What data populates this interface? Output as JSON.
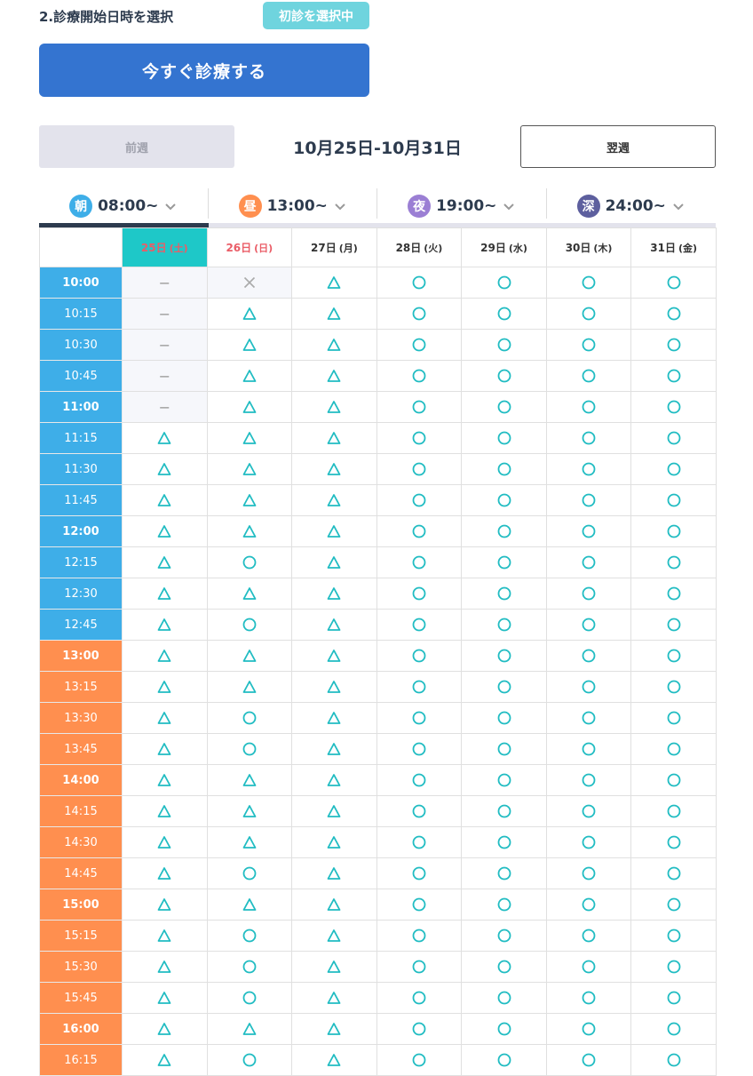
{
  "header": {
    "step_title": "2.診療開始日時を選択",
    "first_visit_badge": "初診を選択中",
    "now_button": "今すぐ診療する"
  },
  "week_nav": {
    "prev_label": "前週",
    "range": "10月25日-10月31日",
    "next_label": "翌週"
  },
  "period_tabs": [
    {
      "icon": "朝",
      "time": "08:00~",
      "color": "#3eaee8",
      "active": true
    },
    {
      "icon": "昼",
      "time": "13:00~",
      "color": "#ff8f4f",
      "active": false
    },
    {
      "icon": "夜",
      "time": "19:00~",
      "color": "#9b7fd4",
      "active": false
    },
    {
      "icon": "深",
      "time": "24:00~",
      "color": "#5d5f9e",
      "active": false
    }
  ],
  "colors": {
    "available": "#20bcc2",
    "full": "#aaaaaa",
    "morning": "#3eaee8",
    "afternoon": "#ff8f4f",
    "today_header": "#1ec8c8",
    "sunday": "#ea5d67"
  },
  "days": [
    {
      "date": "25日",
      "dow": "(土)",
      "today": true
    },
    {
      "date": "26日",
      "dow": "(日)",
      "sunday": true
    },
    {
      "date": "27日",
      "dow": "(月)"
    },
    {
      "date": "28日",
      "dow": "(火)"
    },
    {
      "date": "29日",
      "dow": "(水)"
    },
    {
      "date": "30日",
      "dow": "(木)"
    },
    {
      "date": "31日",
      "dow": "(金)"
    }
  ],
  "slots": [
    {
      "time": "10:00",
      "period": "morning",
      "bold": true,
      "cells": [
        "-",
        "x",
        "tri",
        "o",
        "o",
        "o",
        "o"
      ]
    },
    {
      "time": "10:15",
      "period": "morning",
      "bold": false,
      "cells": [
        "-",
        "tri",
        "tri",
        "o",
        "o",
        "o",
        "o"
      ]
    },
    {
      "time": "10:30",
      "period": "morning",
      "bold": false,
      "cells": [
        "-",
        "tri",
        "tri",
        "o",
        "o",
        "o",
        "o"
      ]
    },
    {
      "time": "10:45",
      "period": "morning",
      "bold": false,
      "cells": [
        "-",
        "tri",
        "tri",
        "o",
        "o",
        "o",
        "o"
      ]
    },
    {
      "time": "11:00",
      "period": "morning",
      "bold": true,
      "cells": [
        "-",
        "tri",
        "tri",
        "o",
        "o",
        "o",
        "o"
      ]
    },
    {
      "time": "11:15",
      "period": "morning",
      "bold": false,
      "cells": [
        "tri",
        "tri",
        "tri",
        "o",
        "o",
        "o",
        "o"
      ]
    },
    {
      "time": "11:30",
      "period": "morning",
      "bold": false,
      "cells": [
        "tri",
        "tri",
        "tri",
        "o",
        "o",
        "o",
        "o"
      ]
    },
    {
      "time": "11:45",
      "period": "morning",
      "bold": false,
      "cells": [
        "tri",
        "tri",
        "tri",
        "o",
        "o",
        "o",
        "o"
      ]
    },
    {
      "time": "12:00",
      "period": "morning",
      "bold": true,
      "cells": [
        "tri",
        "tri",
        "tri",
        "o",
        "o",
        "o",
        "o"
      ]
    },
    {
      "time": "12:15",
      "period": "morning",
      "bold": false,
      "cells": [
        "tri",
        "o",
        "tri",
        "o",
        "o",
        "o",
        "o"
      ]
    },
    {
      "time": "12:30",
      "period": "morning",
      "bold": false,
      "cells": [
        "tri",
        "tri",
        "tri",
        "o",
        "o",
        "o",
        "o"
      ]
    },
    {
      "time": "12:45",
      "period": "morning",
      "bold": false,
      "cells": [
        "tri",
        "o",
        "tri",
        "o",
        "o",
        "o",
        "o"
      ]
    },
    {
      "time": "13:00",
      "period": "afternoon",
      "bold": true,
      "cells": [
        "tri",
        "tri",
        "tri",
        "o",
        "o",
        "o",
        "o"
      ]
    },
    {
      "time": "13:15",
      "period": "afternoon",
      "bold": false,
      "cells": [
        "tri",
        "tri",
        "tri",
        "o",
        "o",
        "o",
        "o"
      ]
    },
    {
      "time": "13:30",
      "period": "afternoon",
      "bold": false,
      "cells": [
        "tri",
        "o",
        "tri",
        "o",
        "o",
        "o",
        "o"
      ]
    },
    {
      "time": "13:45",
      "period": "afternoon",
      "bold": false,
      "cells": [
        "tri",
        "o",
        "tri",
        "o",
        "o",
        "o",
        "o"
      ]
    },
    {
      "time": "14:00",
      "period": "afternoon",
      "bold": true,
      "cells": [
        "tri",
        "tri",
        "tri",
        "o",
        "o",
        "o",
        "o"
      ]
    },
    {
      "time": "14:15",
      "period": "afternoon",
      "bold": false,
      "cells": [
        "tri",
        "tri",
        "tri",
        "o",
        "o",
        "o",
        "o"
      ]
    },
    {
      "time": "14:30",
      "period": "afternoon",
      "bold": false,
      "cells": [
        "tri",
        "tri",
        "tri",
        "o",
        "o",
        "o",
        "o"
      ]
    },
    {
      "time": "14:45",
      "period": "afternoon",
      "bold": false,
      "cells": [
        "tri",
        "o",
        "tri",
        "o",
        "o",
        "o",
        "o"
      ]
    },
    {
      "time": "15:00",
      "period": "afternoon",
      "bold": true,
      "cells": [
        "tri",
        "tri",
        "tri",
        "o",
        "o",
        "o",
        "o"
      ]
    },
    {
      "time": "15:15",
      "period": "afternoon",
      "bold": false,
      "cells": [
        "tri",
        "o",
        "tri",
        "o",
        "o",
        "o",
        "o"
      ]
    },
    {
      "time": "15:30",
      "period": "afternoon",
      "bold": false,
      "cells": [
        "tri",
        "o",
        "tri",
        "o",
        "o",
        "o",
        "o"
      ]
    },
    {
      "time": "15:45",
      "period": "afternoon",
      "bold": false,
      "cells": [
        "tri",
        "o",
        "tri",
        "o",
        "o",
        "o",
        "o"
      ]
    },
    {
      "time": "16:00",
      "period": "afternoon",
      "bold": true,
      "cells": [
        "tri",
        "tri",
        "tri",
        "o",
        "o",
        "o",
        "o"
      ]
    },
    {
      "time": "16:15",
      "period": "afternoon",
      "bold": false,
      "cells": [
        "tri",
        "o",
        "tri",
        "o",
        "o",
        "o",
        "o"
      ]
    }
  ]
}
